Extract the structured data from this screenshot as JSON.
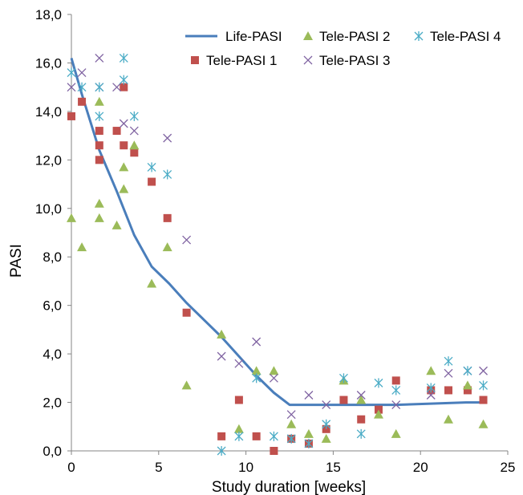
{
  "chart_data": {
    "type": "scatter",
    "xlabel": "Study duration [weeks]",
    "ylabel": "PASI",
    "xlim": [
      0,
      25
    ],
    "ylim": [
      0,
      18
    ],
    "x_ticks": [
      "0",
      "5",
      "10",
      "15",
      "20",
      "25"
    ],
    "y_ticks": [
      "0,0",
      "2,0",
      "4,0",
      "6,0",
      "8,0",
      "10,0",
      "12,0",
      "14,0",
      "16,0",
      "18,0"
    ],
    "grid": false,
    "legend_position": "top-right",
    "series": [
      {
        "name": "Life-PASI",
        "kind": "line",
        "color": "#4a7ebb",
        "points": [
          [
            0,
            16.2
          ],
          [
            0.6,
            14.7
          ],
          [
            1.6,
            12.4
          ],
          [
            2.6,
            10.7
          ],
          [
            3.6,
            8.9
          ],
          [
            4.6,
            7.6
          ],
          [
            5.6,
            6.9
          ],
          [
            6.6,
            6.1
          ],
          [
            7.6,
            5.4
          ],
          [
            8.6,
            4.7
          ],
          [
            9.6,
            3.9
          ],
          [
            10.6,
            3.1
          ],
          [
            11.6,
            2.4
          ],
          [
            12.5,
            1.9
          ],
          [
            14.6,
            1.9
          ],
          [
            16.6,
            1.9
          ],
          [
            18.6,
            1.9
          ],
          [
            20.6,
            1.95
          ],
          [
            22.6,
            2.0
          ],
          [
            23.6,
            2.0
          ]
        ]
      },
      {
        "name": "Tele-PASI 1",
        "kind": "square",
        "color": "#c0504d",
        "points": [
          [
            0,
            13.8
          ],
          [
            0.6,
            14.4
          ],
          [
            1.6,
            13.2
          ],
          [
            1.6,
            12.6
          ],
          [
            1.6,
            12.0
          ],
          [
            2.6,
            13.2
          ],
          [
            3.0,
            15.0
          ],
          [
            3.0,
            12.6
          ],
          [
            3.6,
            12.3
          ],
          [
            4.6,
            11.1
          ],
          [
            5.5,
            9.6
          ],
          [
            6.6,
            5.7
          ],
          [
            8.6,
            0.6
          ],
          [
            9.6,
            2.1
          ],
          [
            10.6,
            0.6
          ],
          [
            11.6,
            0.0
          ],
          [
            12.6,
            0.5
          ],
          [
            13.6,
            0.3
          ],
          [
            14.6,
            0.9
          ],
          [
            15.6,
            2.1
          ],
          [
            16.6,
            1.3
          ],
          [
            17.6,
            1.7
          ],
          [
            18.6,
            2.9
          ],
          [
            20.6,
            2.5
          ],
          [
            21.6,
            2.5
          ],
          [
            22.7,
            2.5
          ],
          [
            23.6,
            2.1
          ]
        ]
      },
      {
        "name": "Tele-PASI 2",
        "kind": "triangle",
        "color": "#9bbb59",
        "points": [
          [
            0,
            9.6
          ],
          [
            0.6,
            8.4
          ],
          [
            1.6,
            14.4
          ],
          [
            1.6,
            10.2
          ],
          [
            1.6,
            9.6
          ],
          [
            2.6,
            9.3
          ],
          [
            3.0,
            11.7
          ],
          [
            3.0,
            10.8
          ],
          [
            3.6,
            12.6
          ],
          [
            4.6,
            6.9
          ],
          [
            5.5,
            8.4
          ],
          [
            6.6,
            2.7
          ],
          [
            8.6,
            4.8
          ],
          [
            9.6,
            0.9
          ],
          [
            10.6,
            3.3
          ],
          [
            11.6,
            3.3
          ],
          [
            12.6,
            1.1
          ],
          [
            13.6,
            0.7
          ],
          [
            14.6,
            0.5
          ],
          [
            15.6,
            2.9
          ],
          [
            16.6,
            2.1
          ],
          [
            17.6,
            1.5
          ],
          [
            18.6,
            0.7
          ],
          [
            20.6,
            3.3
          ],
          [
            21.6,
            1.3
          ],
          [
            22.7,
            2.7
          ],
          [
            23.6,
            1.1
          ]
        ]
      },
      {
        "name": "Tele-PASI 3",
        "kind": "x",
        "color": "#8064a2",
        "points": [
          [
            0,
            15.0
          ],
          [
            0.6,
            15.6
          ],
          [
            1.6,
            16.2
          ],
          [
            1.6,
            15.0
          ],
          [
            2.6,
            15.0
          ],
          [
            3.0,
            13.5
          ],
          [
            3.6,
            13.2
          ],
          [
            5.5,
            12.9
          ],
          [
            6.6,
            8.7
          ],
          [
            8.6,
            3.9
          ],
          [
            9.6,
            3.6
          ],
          [
            10.6,
            4.5
          ],
          [
            11.6,
            3.0
          ],
          [
            12.6,
            1.5
          ],
          [
            13.6,
            2.3
          ],
          [
            14.6,
            1.9
          ],
          [
            16.6,
            2.3
          ],
          [
            18.6,
            1.9
          ],
          [
            20.6,
            2.3
          ],
          [
            21.6,
            3.2
          ],
          [
            22.7,
            3.3
          ],
          [
            23.6,
            3.3
          ]
        ]
      },
      {
        "name": "Tele-PASI 4",
        "kind": "star",
        "color": "#4bacc6",
        "points": [
          [
            0,
            15.6
          ],
          [
            0.6,
            15.0
          ],
          [
            1.6,
            15.0
          ],
          [
            1.6,
            13.8
          ],
          [
            3.0,
            16.2
          ],
          [
            3.0,
            15.3
          ],
          [
            3.6,
            13.8
          ],
          [
            4.6,
            11.7
          ],
          [
            5.5,
            11.4
          ],
          [
            8.6,
            0.0
          ],
          [
            9.6,
            0.6
          ],
          [
            10.6,
            3.0
          ],
          [
            11.6,
            0.6
          ],
          [
            12.6,
            0.5
          ],
          [
            13.6,
            0.3
          ],
          [
            14.6,
            1.1
          ],
          [
            15.6,
            3.0
          ],
          [
            16.6,
            0.7
          ],
          [
            17.6,
            2.8
          ],
          [
            18.6,
            2.5
          ],
          [
            20.6,
            2.6
          ],
          [
            21.6,
            3.7
          ],
          [
            22.7,
            3.3
          ],
          [
            23.6,
            2.7
          ]
        ]
      }
    ]
  }
}
